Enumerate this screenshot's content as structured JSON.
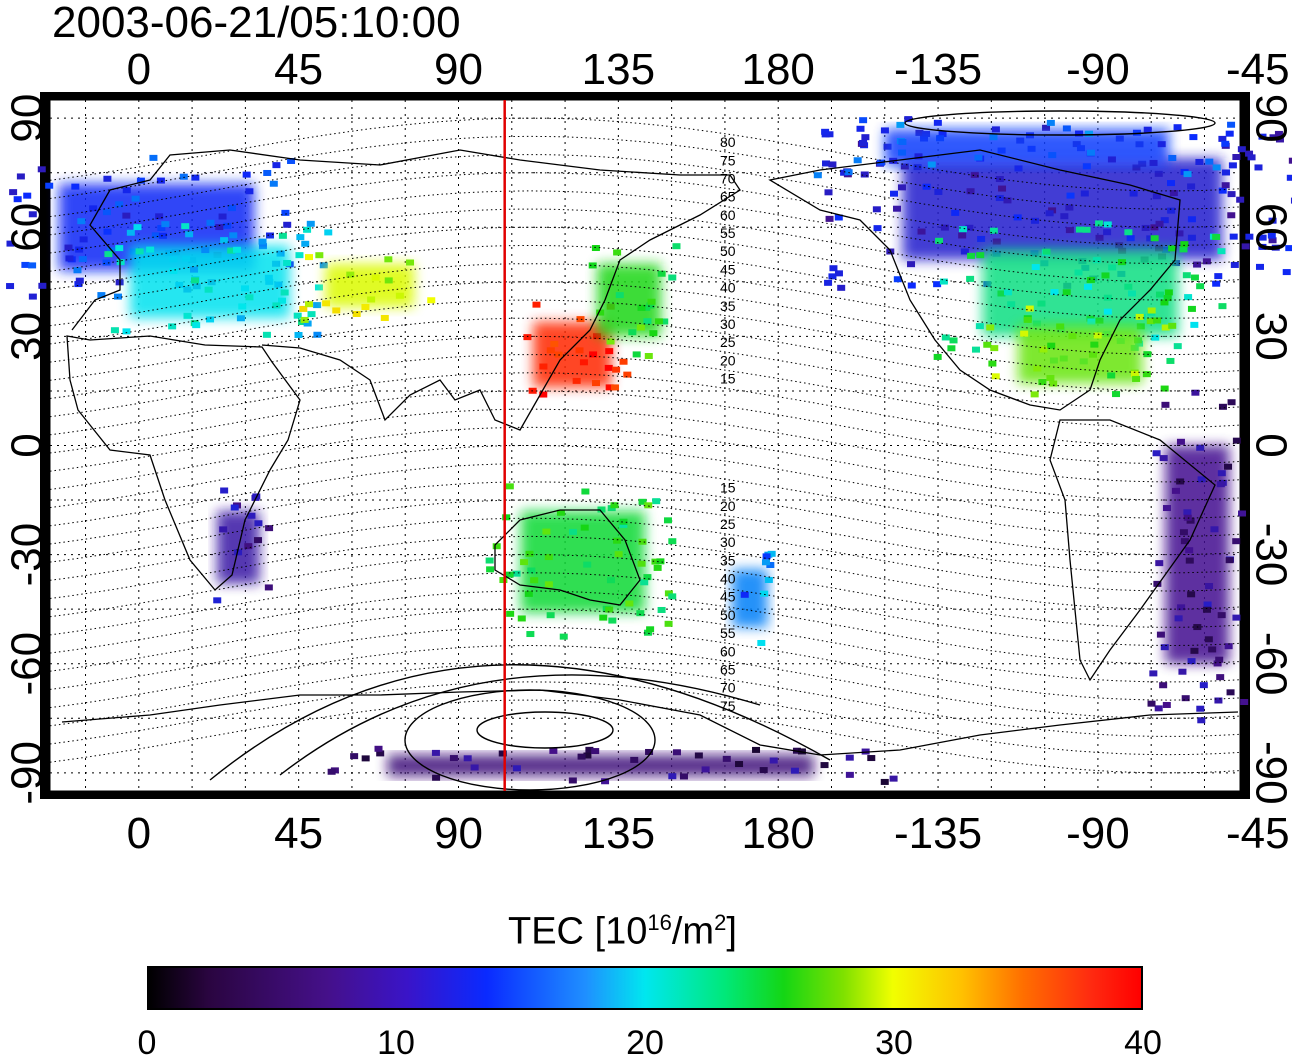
{
  "title": "2003-06-21/05:10:00",
  "axes": {
    "top_ticks": [
      "0",
      "45",
      "90",
      "135",
      "180",
      "-135",
      "-90",
      "-45"
    ],
    "bottom_ticks": [
      "0",
      "45",
      "90",
      "135",
      "180",
      "-135",
      "-90",
      "-45"
    ],
    "left_ticks": [
      "90",
      "60",
      "30",
      "0",
      "-30",
      "-60",
      "-90"
    ],
    "right_ticks": [
      "90",
      "60",
      "30",
      "0",
      "-30",
      "-60",
      "-90"
    ],
    "lon_range": [
      -25,
      310
    ],
    "lat_range": [
      -95,
      95
    ],
    "grid": "dotted"
  },
  "marker_line": {
    "longitude": 103,
    "color": "#e00000"
  },
  "contour_labels": {
    "north": [
      "80",
      "75",
      "70",
      "65",
      "60",
      "55",
      "50",
      "45",
      "40",
      "35",
      "30",
      "25",
      "20",
      "15"
    ],
    "south": [
      "15",
      "20",
      "25",
      "30",
      "35",
      "40",
      "45",
      "50",
      "55",
      "60",
      "65",
      "70",
      "75"
    ]
  },
  "colorbar": {
    "title_text": "TEC  [10",
    "title_sup1": "16",
    "title_mid": "/m",
    "title_sup2": "2",
    "title_end": "]",
    "min": 0,
    "max": 40,
    "ticks": [
      "0",
      "10",
      "20",
      "30",
      "40"
    ],
    "colormap": [
      "#000000",
      "#45108a",
      "#0a2aff",
      "#00e7ef",
      "#14d614",
      "#f1ff00",
      "#ff7000",
      "#ff0000"
    ]
  },
  "tec_regions": [
    {
      "name": "europe",
      "lon": 5,
      "lat": 60,
      "w": 55,
      "h": 12,
      "value": 11
    },
    {
      "name": "europe-south",
      "lon": 20,
      "lat": 45,
      "w": 45,
      "h": 10,
      "value": 17
    },
    {
      "name": "middle-east",
      "lon": 65,
      "lat": 44,
      "w": 25,
      "h": 6,
      "value": 28
    },
    {
      "name": "east-asia",
      "lon": 122,
      "lat": 25,
      "w": 22,
      "h": 9,
      "value": 38
    },
    {
      "name": "japan",
      "lon": 138,
      "lat": 40,
      "w": 18,
      "h": 10,
      "value": 23
    },
    {
      "name": "north-america-north",
      "lon": -100,
      "lat": 65,
      "w": 90,
      "h": 14,
      "value": 9
    },
    {
      "name": "north-america-mid",
      "lon": -95,
      "lat": 42,
      "w": 55,
      "h": 12,
      "value": 20
    },
    {
      "name": "north-america-south",
      "lon": -95,
      "lat": 25,
      "w": 35,
      "h": 8,
      "value": 25
    },
    {
      "name": "arctic-canada",
      "lon": -110,
      "lat": 82,
      "w": 80,
      "h": 5,
      "value": 12
    },
    {
      "name": "south-africa",
      "lon": 28,
      "lat": -28,
      "w": 12,
      "h": 10,
      "value": 7
    },
    {
      "name": "australia",
      "lon": 125,
      "lat": -32,
      "w": 35,
      "h": 14,
      "value": 22
    },
    {
      "name": "new-zealand",
      "lon": 172,
      "lat": -42,
      "w": 10,
      "h": 8,
      "value": 14
    },
    {
      "name": "south-america",
      "lon": -62,
      "lat": -30,
      "w": 18,
      "h": 30,
      "value": 6
    },
    {
      "name": "antarctica",
      "lon": 130,
      "lat": -88,
      "w": 120,
      "h": 3,
      "value": 5
    }
  ]
}
